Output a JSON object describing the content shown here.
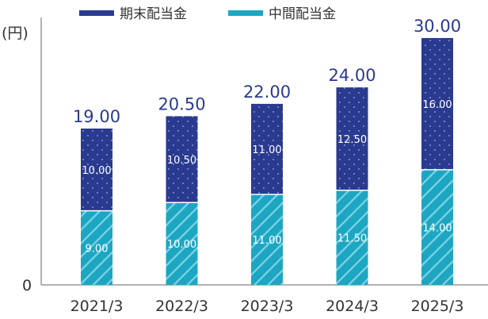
{
  "chart_data": {
    "type": "bar",
    "stacked": true,
    "ylabel": "(円)",
    "ylim": [
      0,
      32.5
    ],
    "y_tick_labels": [
      "0"
    ],
    "categories": [
      "2021/3",
      "2022/3",
      "2023/3",
      "2024/3",
      "2025/3"
    ],
    "series": [
      {
        "name": "中間配当金",
        "values": [
          9.0,
          10.0,
          11.0,
          11.5,
          14.0
        ],
        "value_labels": [
          "9.00",
          "10.00",
          "11.00",
          "11.50",
          "14.00"
        ],
        "color": "#1da6c2"
      },
      {
        "name": "期末配当金",
        "values": [
          10.0,
          10.5,
          11.0,
          12.5,
          16.0
        ],
        "value_labels": [
          "10.00",
          "10.50",
          "11.00",
          "12.50",
          "16.00"
        ],
        "color": "#2a3a8f"
      }
    ],
    "total_labels": [
      "19.00",
      "20.50",
      "22.00",
      "24.00",
      "30.00"
    ],
    "legend": {
      "placement": "top"
    },
    "grid": false
  }
}
